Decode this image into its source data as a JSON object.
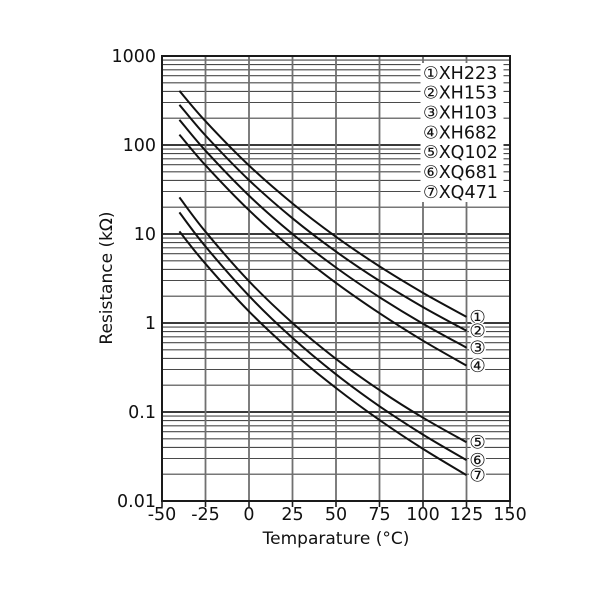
{
  "chart_data": {
    "type": "line",
    "title": "",
    "xlabel": "Temparature (°C)",
    "ylabel": "Resistance (kΩ)",
    "x_axis": {
      "min": -50,
      "max": 150,
      "ticks": [
        -50,
        -25,
        0,
        25,
        50,
        75,
        100,
        125,
        150
      ],
      "tick_labels": [
        "-50",
        "-25",
        "0",
        "25",
        "50",
        "75",
        "100",
        "125",
        "150"
      ]
    },
    "y_axis": {
      "scale": "log",
      "min": 0.01,
      "max": 1000,
      "tick_values": [
        1000,
        100,
        10,
        1,
        0.1,
        0.01
      ],
      "tick_labels": [
        "1000",
        "100",
        "10",
        "1",
        "0.1",
        "0.01"
      ]
    },
    "grid": {
      "vertical_step_c": 25,
      "minor_log_lines": true
    },
    "sample_temps_c": [
      -40,
      -25,
      0,
      25,
      50,
      75,
      100,
      125
    ],
    "series": [
      {
        "marker": "①",
        "name": "XH223",
        "values": [
          406,
          185,
          58.8,
          22,
          9.3,
          4.33,
          2.18,
          1.17
        ]
      },
      {
        "marker": "②",
        "name": "XH153",
        "values": [
          283,
          128,
          40.3,
          15,
          6.35,
          2.97,
          1.51,
          0.817
        ]
      },
      {
        "marker": "③",
        "name": "XH103",
        "values": [
          192,
          86.4,
          27.0,
          10,
          4.2,
          1.95,
          0.982,
          0.528
        ]
      },
      {
        "marker": "④",
        "name": "XH682",
        "values": [
          131,
          59.1,
          18.5,
          6.8,
          2.82,
          1.29,
          0.633,
          0.332
        ]
      },
      {
        "marker": "⑤",
        "name": "XQ102",
        "values": [
          25.8,
          10.6,
          2.95,
          1.0,
          0.395,
          0.176,
          0.0862,
          0.0457
        ]
      },
      {
        "marker": "⑥",
        "name": "XQ681",
        "values": [
          17.5,
          7.23,
          2.02,
          0.68,
          0.265,
          0.116,
          0.0557,
          0.0288
        ]
      },
      {
        "marker": "⑦",
        "name": "XQ471",
        "values": [
          10.7,
          4.62,
          1.35,
          0.47,
          0.186,
          0.0812,
          0.0385,
          0.0195
        ]
      }
    ],
    "legend": {
      "position": "top-right",
      "entries": [
        "①XH223",
        "②XH153",
        "③XH103",
        "④XH682",
        "⑤XQ102",
        "⑥XQ681",
        "⑦XQ471"
      ]
    },
    "end_labels": [
      "①",
      "②",
      "③",
      "④",
      "⑤",
      "⑥",
      "⑦"
    ]
  },
  "colors": {
    "background": "#ffffff",
    "curve": "#111111",
    "grid_minor": "#4a4a4a",
    "grid_major": "#3a3a3a",
    "grid_vertical": "#707070",
    "frame": "#1a1a1a",
    "text": "#111111"
  }
}
